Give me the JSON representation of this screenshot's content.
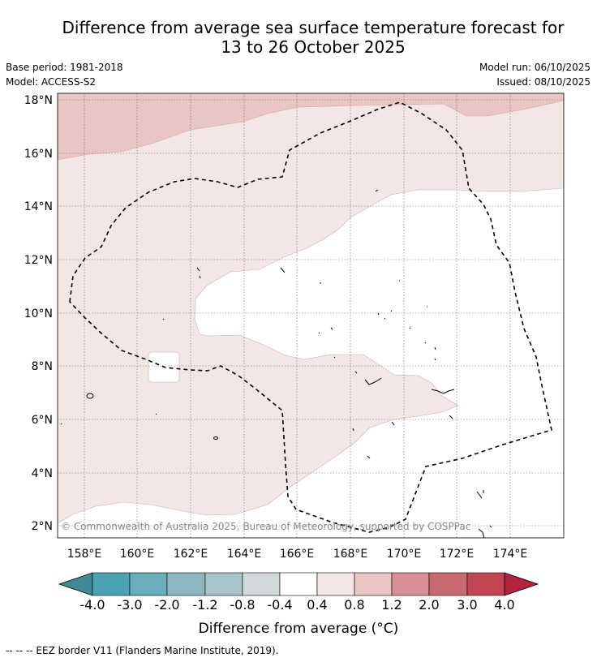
{
  "title_line1": "Difference from average sea surface temperature forecast for",
  "title_line2": "13 to 26 October 2025",
  "meta": {
    "base_period": "Base period: 1981-2018",
    "model": "Model: ACCESS-S2",
    "model_run": "Model run: 06/10/2025",
    "issued": "Issued: 08/10/2025"
  },
  "map": {
    "lat_labels": [
      "18°N",
      "16°N",
      "14°N",
      "12°N",
      "10°N",
      "8°N",
      "6°N",
      "4°N",
      "2°N"
    ],
    "lon_labels": [
      "158°E",
      "160°E",
      "162°E",
      "164°E",
      "166°E",
      "168°E",
      "170°E",
      "172°E",
      "174°E"
    ],
    "copyright": "© Commonwealth of Australia 2025, Bureau of Meteorology, supported by COSPPac"
  },
  "colorbar": {
    "labels": [
      "-4.0",
      "-3.0",
      "-2.0",
      "-1.2",
      "-0.8",
      "-0.4",
      "0.4",
      "0.8",
      "1.2",
      "2.0",
      "3.0",
      "4.0"
    ],
    "colors": [
      "#3f8895",
      "#4aa2b5",
      "#6aaebb",
      "#8cb7c2",
      "#a7c5ca",
      "#d2d9da",
      "#ffffff",
      "#f5e6e6",
      "#e9c6c3",
      "#d98f96",
      "#c96972",
      "#c24554",
      "#b3233f"
    ],
    "title": "Difference from average (°C)"
  },
  "footer": "-- -- -- EEZ border V11 (Flanders Marine Institute, 2019)."
}
